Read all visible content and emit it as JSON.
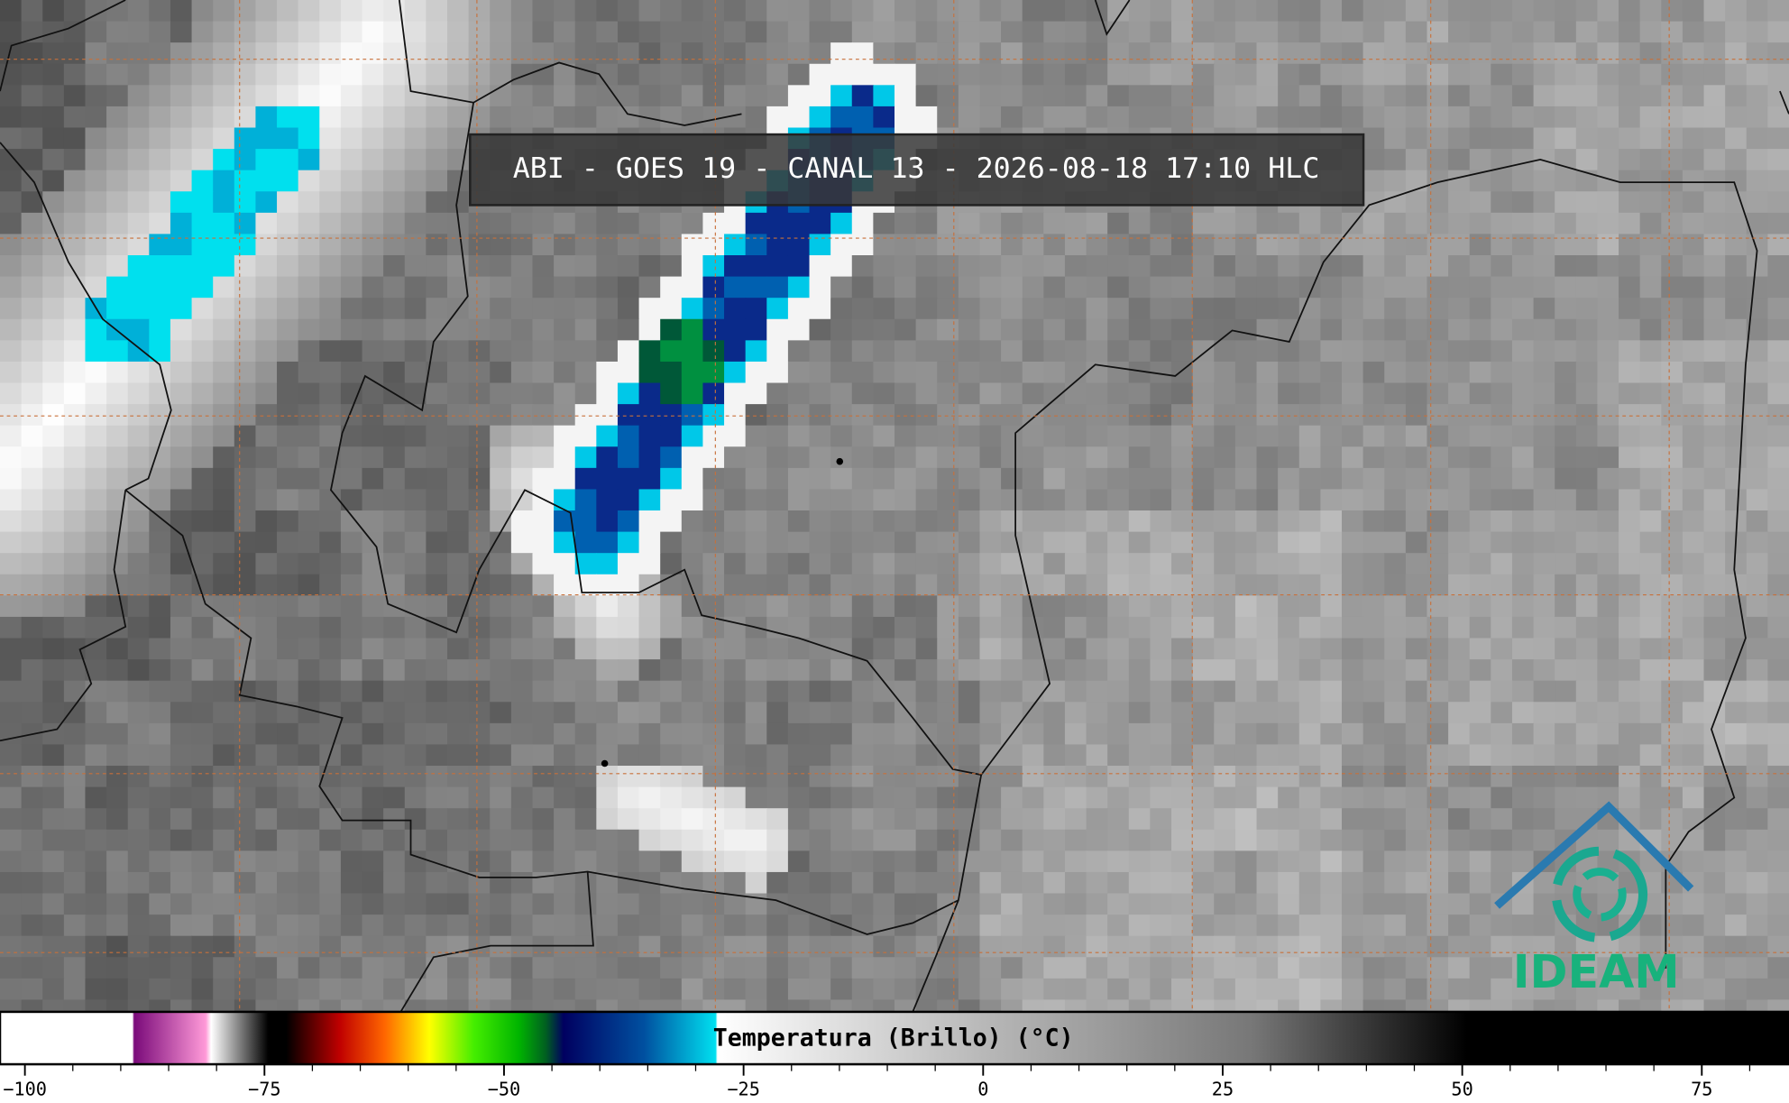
{
  "title": "ABI - GOES 19 - CANAL 13 - 2026-08-18 17:10 HLC",
  "colorbar": {
    "label": "Temperatura (Brillo) (°C)",
    "lim": [
      -102.6,
      84.1
    ],
    "ticks": [
      {
        "value": -100,
        "label": "−100"
      },
      {
        "value": -75,
        "label": "−75"
      },
      {
        "value": -50,
        "label": "−50"
      },
      {
        "value": -25,
        "label": "−25"
      },
      0,
      25,
      50,
      75
    ],
    "minor_tick_interval": 5
  },
  "logo": {
    "text": "IDEAM"
  }
}
